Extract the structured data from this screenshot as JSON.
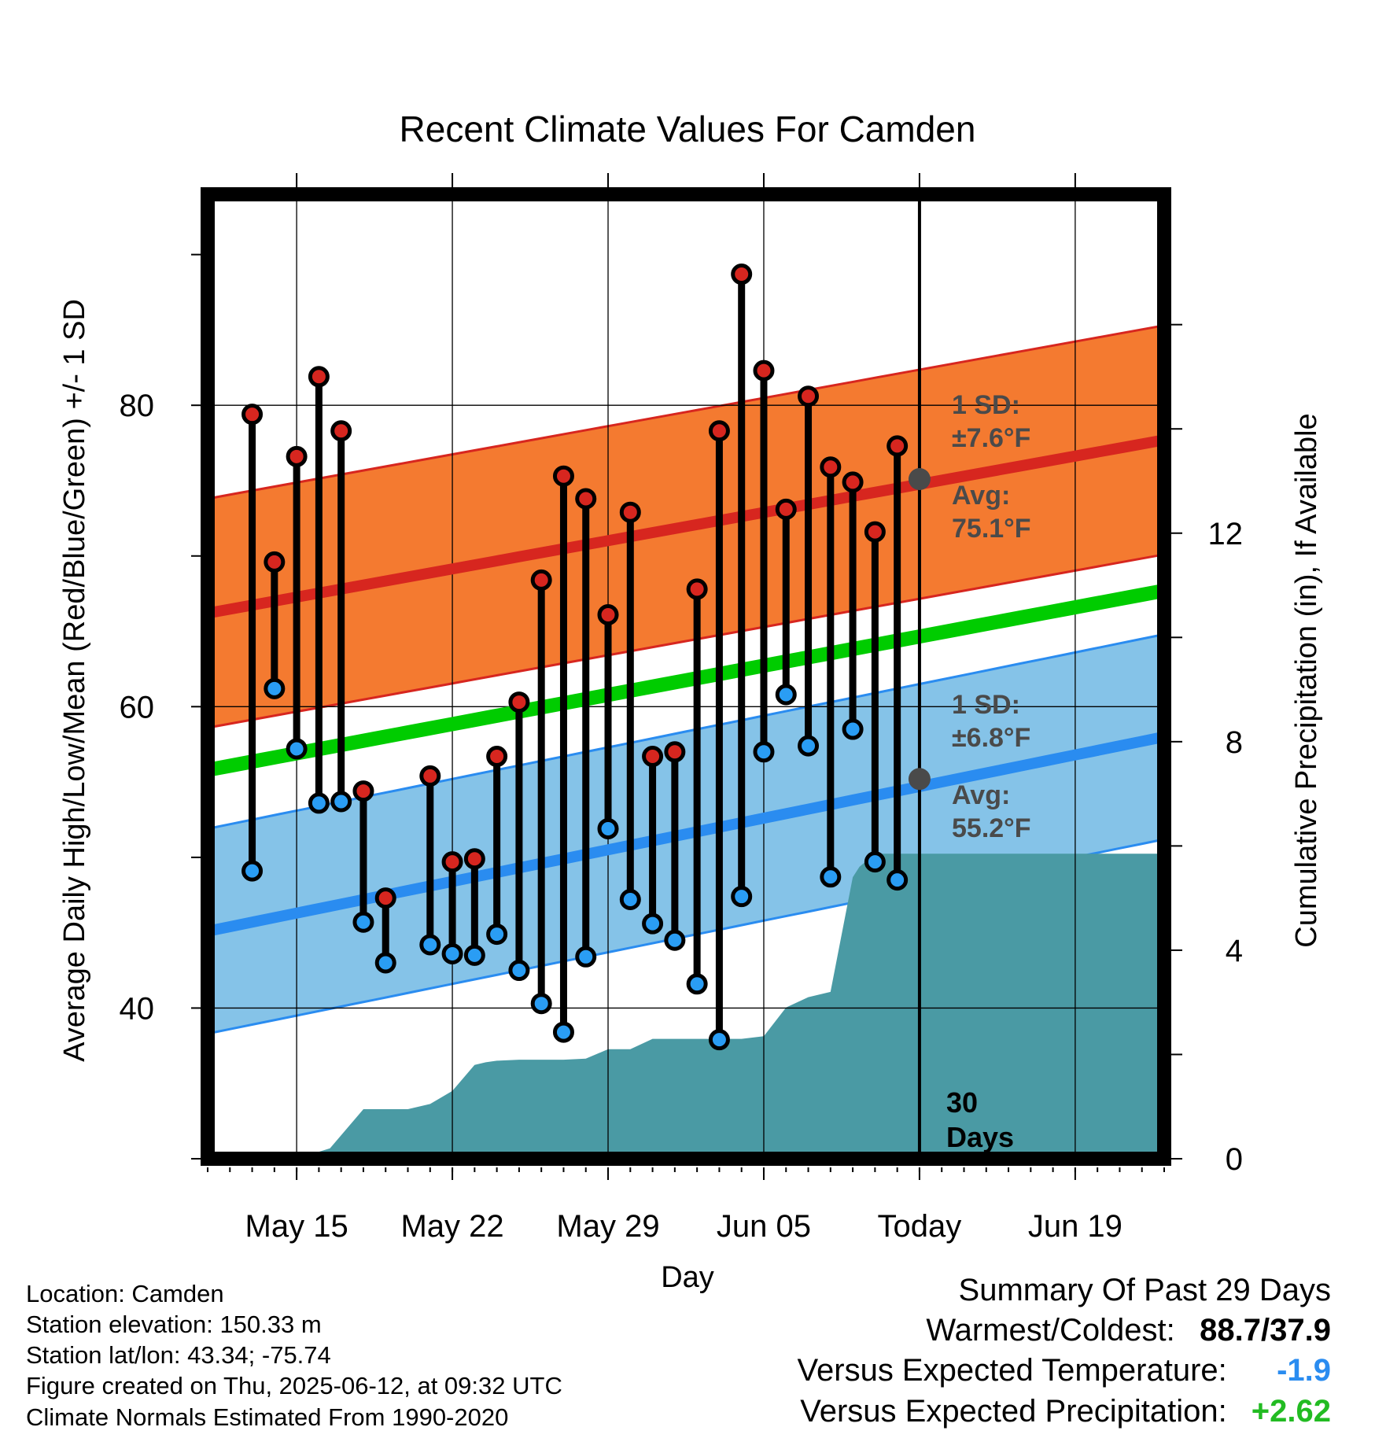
{
  "chart_data": {
    "type": "line",
    "title": "Recent Climate Values For Camden",
    "xlabel": "Day",
    "ylabel": "Average Daily High/Low/Mean (Red/Blue/Green) +/- 1 SD",
    "y2label": "Cumulative Precipitation (in), If Available",
    "ylim": [
      30,
      94
    ],
    "y2lim": [
      0,
      18.5
    ],
    "yticks": [
      "40",
      "60",
      "80"
    ],
    "y2ticks": [
      "0",
      "4",
      "8",
      "12"
    ],
    "x_range_days": [
      -32,
      11
    ],
    "x_ticks": [
      {
        "day": -28,
        "label": "May 15"
      },
      {
        "day": -21,
        "label": "May 22"
      },
      {
        "day": -14,
        "label": "May 29"
      },
      {
        "day": -7,
        "label": "Jun 05"
      },
      {
        "day": 0,
        "label": "Today"
      },
      {
        "day": 7,
        "label": "Jun 19"
      }
    ],
    "grid": true,
    "normals": {
      "high_mean": {
        "start": 66.2,
        "end": 77.7
      },
      "high_sd": 7.6,
      "mean": {
        "start": 55.8,
        "end": 67.7
      },
      "low_mean": {
        "start": 45.1,
        "end": 58.0
      },
      "low_sd": 6.8
    },
    "colors": {
      "high_band": "#f47a30",
      "high_line": "#d7261f",
      "low_band": "#85c3e8",
      "low_line": "#2a8cf0",
      "mean_line": "#00cc00",
      "precip_fill": "#4a9aa4",
      "high_marker": "#d7261f",
      "low_marker": "#2a9df4"
    },
    "series": [
      {
        "name": "High",
        "x": [
          -30,
          -29,
          -28,
          -27,
          -26,
          -25,
          -24,
          -22,
          -21,
          -20,
          -19,
          -18,
          -17,
          -16,
          -15,
          -14,
          -13,
          -12,
          -11,
          -10,
          -9,
          -8,
          -7,
          -6,
          -5,
          -4,
          -3,
          -2,
          -1
        ],
        "values": [
          79.4,
          69.6,
          76.6,
          81.9,
          78.3,
          54.4,
          47.3,
          55.4,
          49.7,
          49.9,
          56.7,
          60.3,
          68.4,
          75.3,
          73.8,
          66.1,
          72.9,
          56.7,
          57.0,
          67.8,
          78.3,
          88.7,
          82.3,
          73.1,
          80.6,
          75.9,
          74.9,
          71.6,
          77.3
        ]
      },
      {
        "name": "Low",
        "x": [
          -30,
          -29,
          -28,
          -27,
          -26,
          -25,
          -24,
          -22,
          -21,
          -20,
          -19,
          -18,
          -17,
          -16,
          -15,
          -14,
          -13,
          -12,
          -11,
          -10,
          -9,
          -8,
          -7,
          -6,
          -5,
          -4,
          -3,
          -2,
          -1
        ],
        "values": [
          49.1,
          61.2,
          57.2,
          53.6,
          53.7,
          45.7,
          43.0,
          44.2,
          43.6,
          43.5,
          44.9,
          42.5,
          40.3,
          38.4,
          43.4,
          51.9,
          47.2,
          45.6,
          44.5,
          41.6,
          37.9,
          47.4,
          57.0,
          60.8,
          57.4,
          48.7,
          58.5,
          49.7,
          48.5
        ]
      },
      {
        "name": "Cumulative Precipitation",
        "x": [
          -28,
          -26.5,
          -25,
          -24,
          -23,
          -22,
          -21,
          -20,
          -19.5,
          -19,
          -18,
          -16,
          -15,
          -14,
          -13,
          -12,
          -11,
          -10,
          -9,
          -8,
          -7,
          -6,
          -5,
          -4,
          -3,
          -2.7,
          -2,
          -1,
          0,
          11
        ],
        "values": [
          0,
          0.2,
          0.95,
          0.95,
          0.95,
          1.05,
          1.3,
          1.8,
          1.85,
          1.88,
          1.9,
          1.9,
          1.92,
          2.1,
          2.1,
          2.3,
          2.3,
          2.3,
          2.3,
          2.3,
          2.35,
          2.9,
          3.1,
          3.2,
          5.4,
          5.6,
          5.85,
          5.85,
          5.85,
          5.85
        ]
      }
    ],
    "annotations": {
      "high_sd_label": "1 SD:",
      "high_sd_value": "±7.6°F",
      "high_avg_label": "Avg:",
      "high_avg_value": "75.1°F",
      "high_avg_at_today": 75.1,
      "low_sd_label": "1 SD:",
      "low_sd_value": "±6.8°F",
      "low_avg_label": "Avg:",
      "low_avg_value": "55.2°F",
      "low_avg_at_today": 55.2,
      "period_number": "30",
      "period_unit": "Days"
    }
  },
  "info": {
    "location": "Location: Camden",
    "elevation": "Station elevation: 150.33 m",
    "latlon": "Station lat/lon: 43.34; -75.74",
    "created": "Figure created on Thu, 2025-06-12, at 09:32 UTC",
    "normals": "Climate Normals Estimated From 1990-2020"
  },
  "summary": {
    "title": "Summary Of Past 29 Days",
    "warm_cold_label": "Warmest/Coldest:",
    "warm_cold_value": "88.7/37.9",
    "temp_label": "Versus Expected Temperature:",
    "temp_value": "-1.9",
    "temp_color": "#2a8cf0",
    "precip_label": "Versus Expected Precipitation:",
    "precip_value": "+2.62",
    "precip_color": "#22bb22"
  }
}
